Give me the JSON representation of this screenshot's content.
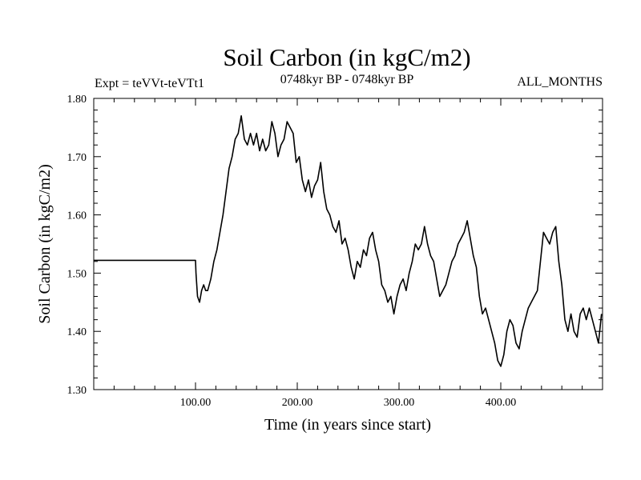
{
  "chart_data": {
    "type": "line",
    "title": "Soil Carbon (in kgC/m2)",
    "subtitle_left": "Expt = teVVt-teVTt1",
    "subtitle_center": "0748kyr BP - 0748kyr BP",
    "subtitle_right": "ALL_MONTHS",
    "xlabel": "Time (in years since start)",
    "ylabel": "Soil Carbon (in kgC/m2)",
    "xlim": [
      0,
      500
    ],
    "ylim": [
      1.3,
      1.8
    ],
    "x_ticks": [
      100,
      200,
      300,
      400
    ],
    "x_tick_labels": [
      "100.00",
      "200.00",
      "300.00",
      "400.00"
    ],
    "y_ticks": [
      1.3,
      1.4,
      1.5,
      1.6,
      1.7,
      1.8
    ],
    "y_tick_labels": [
      "1.30",
      "1.40",
      "1.50",
      "1.60",
      "1.70",
      "1.80"
    ],
    "grid": false,
    "series": [
      {
        "color": "#000000",
        "x": [
          0,
          100,
          100.5,
          102,
          104,
          106,
          108,
          110,
          112,
          115,
          118,
          121,
          124,
          127,
          130,
          133,
          136,
          139,
          142,
          145,
          148,
          151,
          154,
          157,
          160,
          163,
          166,
          169,
          172,
          175,
          178,
          181,
          184,
          187,
          190,
          193,
          196,
          199,
          202,
          205,
          208,
          211,
          214,
          217,
          220,
          223,
          226,
          229,
          232,
          235,
          238,
          241,
          244,
          247,
          250,
          253,
          256,
          259,
          262,
          265,
          268,
          271,
          274,
          277,
          280,
          283,
          286,
          289,
          292,
          295,
          298,
          301,
          304,
          307,
          310,
          313,
          316,
          319,
          322,
          325,
          328,
          331,
          334,
          337,
          340,
          343,
          346,
          349,
          352,
          355,
          358,
          361,
          364,
          367,
          370,
          373,
          376,
          379,
          382,
          385,
          388,
          391,
          394,
          397,
          400,
          403,
          406,
          409,
          412,
          415,
          418,
          421,
          424,
          427,
          430,
          433,
          436,
          439,
          442,
          445,
          448,
          451,
          454,
          457,
          460,
          463,
          466,
          469,
          472,
          475,
          478,
          481,
          484,
          487,
          490,
          493,
          496,
          499
        ],
        "y": [
          1.522,
          1.522,
          1.5,
          1.46,
          1.45,
          1.47,
          1.48,
          1.47,
          1.47,
          1.49,
          1.52,
          1.54,
          1.57,
          1.6,
          1.64,
          1.68,
          1.7,
          1.73,
          1.74,
          1.77,
          1.73,
          1.72,
          1.74,
          1.72,
          1.74,
          1.71,
          1.73,
          1.71,
          1.72,
          1.76,
          1.74,
          1.7,
          1.72,
          1.73,
          1.76,
          1.75,
          1.74,
          1.69,
          1.7,
          1.66,
          1.64,
          1.66,
          1.63,
          1.65,
          1.66,
          1.69,
          1.64,
          1.61,
          1.6,
          1.58,
          1.57,
          1.59,
          1.55,
          1.56,
          1.54,
          1.51,
          1.49,
          1.52,
          1.51,
          1.54,
          1.53,
          1.56,
          1.57,
          1.54,
          1.52,
          1.48,
          1.47,
          1.45,
          1.46,
          1.43,
          1.46,
          1.48,
          1.49,
          1.47,
          1.5,
          1.52,
          1.55,
          1.54,
          1.55,
          1.58,
          1.55,
          1.53,
          1.52,
          1.49,
          1.46,
          1.47,
          1.48,
          1.5,
          1.52,
          1.53,
          1.55,
          1.56,
          1.57,
          1.59,
          1.56,
          1.53,
          1.51,
          1.46,
          1.43,
          1.44,
          1.42,
          1.4,
          1.38,
          1.35,
          1.34,
          1.36,
          1.4,
          1.42,
          1.41,
          1.38,
          1.37,
          1.4,
          1.42,
          1.44,
          1.45,
          1.46,
          1.47,
          1.52,
          1.57,
          1.56,
          1.55,
          1.57,
          1.58,
          1.52,
          1.48,
          1.42,
          1.4,
          1.43,
          1.4,
          1.39,
          1.43,
          1.44,
          1.42,
          1.44,
          1.42,
          1.4,
          1.38,
          1.43
        ]
      }
    ]
  }
}
